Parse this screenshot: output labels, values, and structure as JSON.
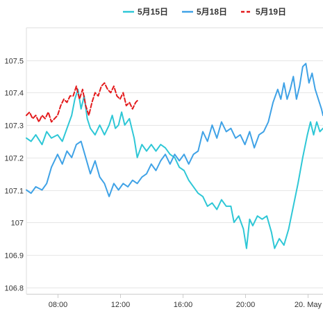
{
  "chart_data": {
    "type": "line",
    "title": "",
    "xlabel": "",
    "ylabel": "",
    "grid": true,
    "legend_position": "top",
    "x_ticks": [
      "08:00",
      "12:00",
      "16:00",
      "20:00",
      "20. May"
    ],
    "x_tick_hours": [
      8,
      12,
      16,
      20,
      24
    ],
    "xlim_hours": [
      6,
      25
    ],
    "y_ticks": [
      106.8,
      106.9,
      107,
      107.1,
      107.2,
      107.3,
      107.4,
      107.5
    ],
    "y_tick_labels": [
      "106.8",
      "106.9",
      "107",
      "107.1",
      "107.2",
      "107.3",
      "107.4",
      "107.5"
    ],
    "ylim": [
      106.78,
      107.6
    ],
    "series": [
      {
        "name": "5月15日",
        "color": "#2ec7d6",
        "dash": false,
        "points": [
          [
            6.0,
            107.26
          ],
          [
            6.3,
            107.25
          ],
          [
            6.6,
            107.27
          ],
          [
            7.0,
            107.24
          ],
          [
            7.3,
            107.28
          ],
          [
            7.6,
            107.26
          ],
          [
            8.0,
            107.27
          ],
          [
            8.3,
            107.25
          ],
          [
            8.6,
            107.29
          ],
          [
            8.9,
            107.33
          ],
          [
            9.1,
            107.38
          ],
          [
            9.3,
            107.41
          ],
          [
            9.5,
            107.35
          ],
          [
            9.7,
            107.39
          ],
          [
            9.9,
            107.32
          ],
          [
            10.1,
            107.29
          ],
          [
            10.4,
            107.27
          ],
          [
            10.7,
            107.3
          ],
          [
            11.0,
            107.27
          ],
          [
            11.3,
            107.3
          ],
          [
            11.5,
            107.33
          ],
          [
            11.7,
            107.29
          ],
          [
            11.9,
            107.3
          ],
          [
            12.1,
            107.34
          ],
          [
            12.3,
            107.3
          ],
          [
            12.6,
            107.32
          ],
          [
            12.9,
            107.26
          ],
          [
            13.1,
            107.2
          ],
          [
            13.4,
            107.24
          ],
          [
            13.7,
            107.22
          ],
          [
            14.0,
            107.24
          ],
          [
            14.3,
            107.22
          ],
          [
            14.6,
            107.24
          ],
          [
            14.9,
            107.23
          ],
          [
            15.2,
            107.21
          ],
          [
            15.5,
            107.2
          ],
          [
            15.8,
            107.17
          ],
          [
            16.1,
            107.16
          ],
          [
            16.4,
            107.13
          ],
          [
            16.7,
            107.11
          ],
          [
            17.0,
            107.09
          ],
          [
            17.3,
            107.08
          ],
          [
            17.6,
            107.05
          ],
          [
            17.9,
            107.06
          ],
          [
            18.2,
            107.04
          ],
          [
            18.5,
            107.07
          ],
          [
            18.8,
            107.05
          ],
          [
            19.1,
            107.05
          ],
          [
            19.3,
            107.0
          ],
          [
            19.6,
            107.02
          ],
          [
            19.9,
            106.98
          ],
          [
            20.1,
            106.92
          ],
          [
            20.3,
            107.01
          ],
          [
            20.5,
            106.99
          ],
          [
            20.8,
            107.02
          ],
          [
            21.1,
            107.01
          ],
          [
            21.4,
            107.02
          ],
          [
            21.7,
            106.97
          ],
          [
            21.9,
            106.92
          ],
          [
            22.2,
            106.95
          ],
          [
            22.5,
            106.93
          ],
          [
            22.8,
            106.98
          ],
          [
            23.1,
            107.05
          ],
          [
            23.4,
            107.12
          ],
          [
            23.7,
            107.2
          ],
          [
            24.0,
            107.27
          ],
          [
            24.2,
            107.31
          ],
          [
            24.4,
            107.27
          ],
          [
            24.6,
            107.31
          ],
          [
            24.8,
            107.28
          ],
          [
            25.0,
            107.29
          ]
        ]
      },
      {
        "name": "5月18日",
        "color": "#3fa2e6",
        "dash": false,
        "points": [
          [
            6.0,
            107.1
          ],
          [
            6.3,
            107.09
          ],
          [
            6.6,
            107.11
          ],
          [
            7.0,
            107.1
          ],
          [
            7.3,
            107.12
          ],
          [
            7.6,
            107.17
          ],
          [
            8.0,
            107.21
          ],
          [
            8.3,
            107.18
          ],
          [
            8.6,
            107.22
          ],
          [
            8.9,
            107.2
          ],
          [
            9.2,
            107.24
          ],
          [
            9.5,
            107.25
          ],
          [
            9.8,
            107.2
          ],
          [
            10.1,
            107.15
          ],
          [
            10.4,
            107.19
          ],
          [
            10.7,
            107.14
          ],
          [
            11.0,
            107.12
          ],
          [
            11.3,
            107.08
          ],
          [
            11.6,
            107.12
          ],
          [
            11.9,
            107.1
          ],
          [
            12.2,
            107.12
          ],
          [
            12.5,
            107.11
          ],
          [
            12.8,
            107.13
          ],
          [
            13.1,
            107.12
          ],
          [
            13.4,
            107.14
          ],
          [
            13.7,
            107.15
          ],
          [
            14.0,
            107.18
          ],
          [
            14.3,
            107.16
          ],
          [
            14.6,
            107.19
          ],
          [
            14.9,
            107.21
          ],
          [
            15.2,
            107.18
          ],
          [
            15.5,
            107.21
          ],
          [
            15.8,
            107.19
          ],
          [
            16.1,
            107.21
          ],
          [
            16.4,
            107.18
          ],
          [
            16.7,
            107.21
          ],
          [
            17.0,
            107.22
          ],
          [
            17.3,
            107.28
          ],
          [
            17.6,
            107.25
          ],
          [
            17.9,
            107.3
          ],
          [
            18.2,
            107.26
          ],
          [
            18.5,
            107.31
          ],
          [
            18.8,
            107.28
          ],
          [
            19.1,
            107.29
          ],
          [
            19.4,
            107.26
          ],
          [
            19.7,
            107.27
          ],
          [
            20.0,
            107.24
          ],
          [
            20.3,
            107.28
          ],
          [
            20.6,
            107.23
          ],
          [
            20.9,
            107.27
          ],
          [
            21.2,
            107.28
          ],
          [
            21.5,
            107.31
          ],
          [
            21.8,
            107.37
          ],
          [
            22.1,
            107.41
          ],
          [
            22.3,
            107.38
          ],
          [
            22.5,
            107.43
          ],
          [
            22.7,
            107.38
          ],
          [
            22.9,
            107.41
          ],
          [
            23.1,
            107.45
          ],
          [
            23.3,
            107.38
          ],
          [
            23.5,
            107.42
          ],
          [
            23.7,
            107.48
          ],
          [
            23.9,
            107.49
          ],
          [
            24.1,
            107.43
          ],
          [
            24.3,
            107.46
          ],
          [
            24.5,
            107.41
          ],
          [
            24.7,
            107.38
          ],
          [
            24.9,
            107.35
          ],
          [
            25.0,
            107.33
          ]
        ]
      },
      {
        "name": "5月19日",
        "color": "#e31a1c",
        "dash": true,
        "points": [
          [
            6.0,
            107.33
          ],
          [
            6.2,
            107.34
          ],
          [
            6.4,
            107.32
          ],
          [
            6.6,
            107.33
          ],
          [
            6.8,
            107.31
          ],
          [
            7.0,
            107.33
          ],
          [
            7.2,
            107.32
          ],
          [
            7.4,
            107.34
          ],
          [
            7.6,
            107.31
          ],
          [
            7.8,
            107.32
          ],
          [
            8.0,
            107.33
          ],
          [
            8.2,
            107.36
          ],
          [
            8.4,
            107.38
          ],
          [
            8.6,
            107.37
          ],
          [
            8.8,
            107.39
          ],
          [
            9.0,
            107.39
          ],
          [
            9.2,
            107.42
          ],
          [
            9.4,
            107.38
          ],
          [
            9.6,
            107.41
          ],
          [
            9.8,
            107.36
          ],
          [
            10.0,
            107.33
          ],
          [
            10.2,
            107.37
          ],
          [
            10.4,
            107.4
          ],
          [
            10.6,
            107.39
          ],
          [
            10.8,
            107.42
          ],
          [
            11.0,
            107.43
          ],
          [
            11.2,
            107.41
          ],
          [
            11.4,
            107.4
          ],
          [
            11.6,
            107.42
          ],
          [
            11.8,
            107.39
          ],
          [
            12.0,
            107.38
          ],
          [
            12.2,
            107.4
          ],
          [
            12.4,
            107.36
          ],
          [
            12.6,
            107.37
          ],
          [
            12.8,
            107.35
          ],
          [
            13.0,
            107.37
          ],
          [
            13.2,
            107.38
          ]
        ]
      }
    ]
  }
}
